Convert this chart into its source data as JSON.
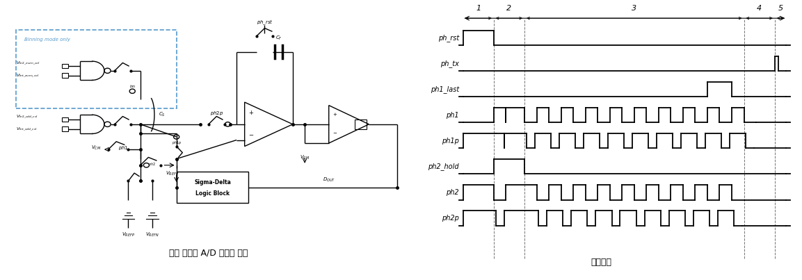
{
  "fig_width": 11.53,
  "fig_height": 4.03,
  "bg_color": "#ffffff",
  "left_title": "델타 시그마 A/D 변환기 구조",
  "right_title": "타이밍도",
  "signals": [
    "ph_rst",
    "ph_tx",
    "ph1_last",
    "ph1",
    "ph1p",
    "ph2_hold",
    "ph2",
    "ph2p"
  ],
  "zone_labels": [
    "1",
    "2",
    "3",
    "4",
    "5"
  ]
}
